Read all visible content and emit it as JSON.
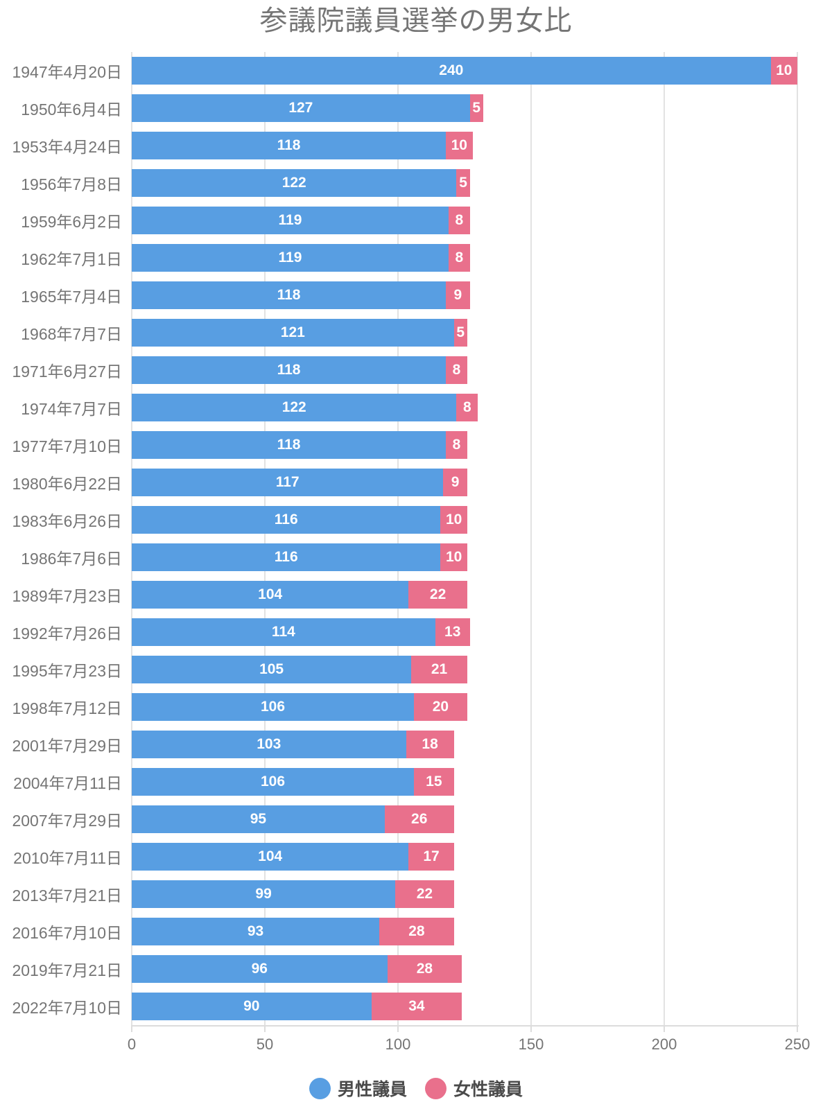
{
  "title": "参議院議員選挙の男女比",
  "chart_data": {
    "type": "bar",
    "orientation": "horizontal",
    "stacked": true,
    "title": "参議院議員選挙の男女比",
    "categories": [
      "1947年4月20日",
      "1950年6月4日",
      "1953年4月24日",
      "1956年7月8日",
      "1959年6月2日",
      "1962年7月1日",
      "1965年7月4日",
      "1968年7月7日",
      "1971年6月27日",
      "1974年7月7日",
      "1977年7月10日",
      "1980年6月22日",
      "1983年6月26日",
      "1986年7月6日",
      "1989年7月23日",
      "1992年7月26日",
      "1995年7月23日",
      "1998年7月12日",
      "2001年7月29日",
      "2004年7月11日",
      "2007年7月29日",
      "2010年7月11日",
      "2013年7月21日",
      "2016年7月10日",
      "2019年7月21日",
      "2022年7月10日"
    ],
    "series": [
      {
        "name": "男性議員",
        "color": "#589ee2",
        "values": [
          240,
          127,
          118,
          122,
          119,
          119,
          118,
          121,
          118,
          122,
          118,
          117,
          116,
          116,
          104,
          114,
          105,
          106,
          103,
          106,
          95,
          104,
          99,
          93,
          96,
          90
        ]
      },
      {
        "name": "女性議員",
        "color": "#e9708c",
        "values": [
          10,
          5,
          10,
          5,
          8,
          8,
          9,
          5,
          8,
          8,
          8,
          9,
          10,
          10,
          22,
          13,
          21,
          20,
          18,
          15,
          26,
          17,
          22,
          28,
          28,
          34
        ]
      }
    ],
    "xlim": [
      0,
      250
    ],
    "x_ticks": [
      0,
      50,
      100,
      150,
      200,
      250
    ],
    "grid": true,
    "legend_position": "bottom",
    "value_labels": "inside-white-bold"
  },
  "colors": {
    "male": "#589ee2",
    "female": "#e9708c",
    "axis_text": "#757575",
    "title_text": "#757575",
    "legend_text": "#4a4a4a",
    "gridline": "#e2e2e2"
  }
}
